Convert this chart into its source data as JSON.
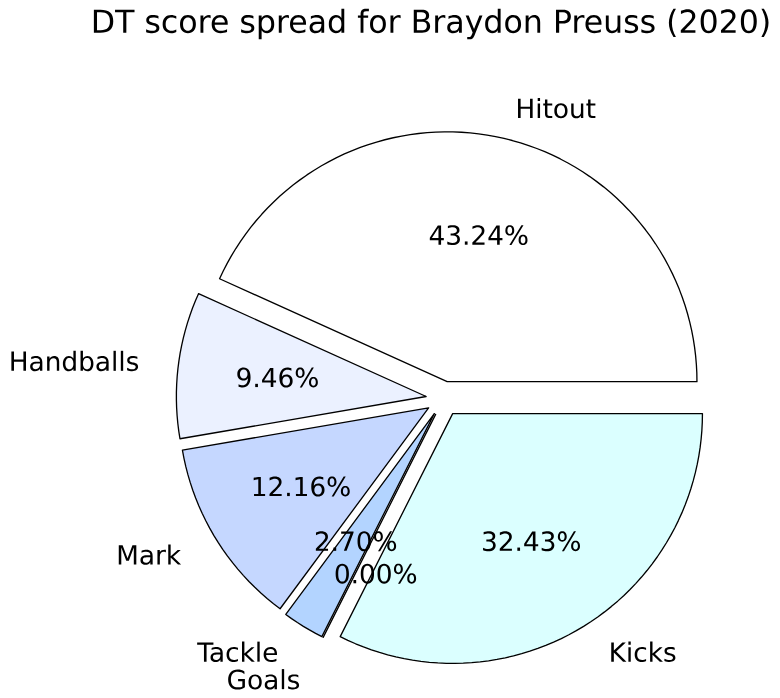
{
  "chart_data": {
    "type": "pie",
    "title": "DT score spread for Braydon Preuss (2020)",
    "categories": [
      "Hitout",
      "Handballs",
      "Mark",
      "Tackle",
      "Goals",
      "Kicks"
    ],
    "values": [
      43.24,
      9.46,
      12.16,
      2.7,
      0.0,
      32.43
    ],
    "value_labels": [
      "43.24%",
      "9.46%",
      "12.16%",
      "2.70%",
      "0.00%",
      "32.43%"
    ],
    "colors": [
      "#ffffff",
      "#ebf1ff",
      "#c5d7ff",
      "#b3d4ff",
      "#9fc0ff",
      "#dbffff"
    ],
    "legend": false
  }
}
